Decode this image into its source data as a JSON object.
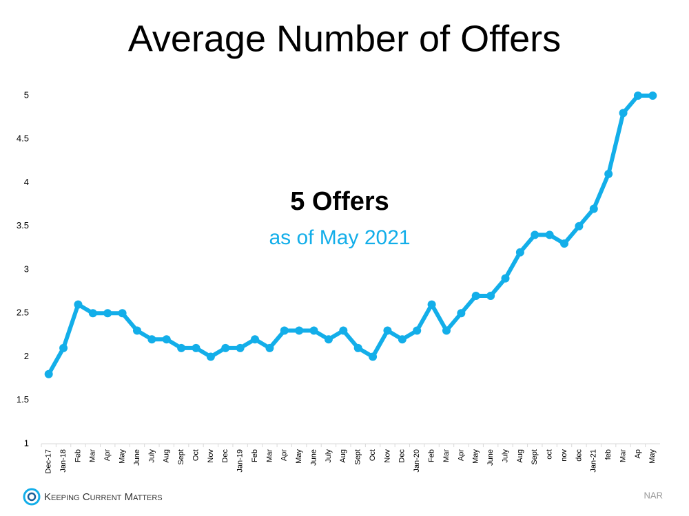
{
  "chart_data": {
    "type": "line",
    "title": "Average Number of Offers",
    "annotation": "5 Offers",
    "annotation_subtitle": "as of May 2021",
    "logo": "Keeping Current Matters",
    "source": "NAR",
    "categories": [
      "Dec-17",
      "Jan-18",
      "Feb",
      "Mar",
      "Apr",
      "May",
      "June",
      "July",
      "Aug",
      "Sept",
      "Oct",
      "Nov",
      "Dec",
      "Jan-19",
      "Feb",
      "Mar",
      "Apr",
      "May",
      "June",
      "July",
      "Aug",
      "Sept",
      "Oct",
      "Nov",
      "Dec",
      "Jan-20",
      "Feb",
      "Mar",
      "Apr",
      "May",
      "June",
      "July",
      "Aug",
      "Sept",
      "oct",
      "nov",
      "dec",
      "Jan-21",
      "feb",
      "Mar",
      "Ap",
      "May"
    ],
    "values": [
      1.8,
      2.1,
      2.6,
      2.5,
      2.5,
      2.5,
      2.3,
      2.2,
      2.2,
      2.1,
      2.1,
      2.0,
      2.1,
      2.1,
      2.2,
      2.1,
      2.3,
      2.3,
      2.3,
      2.2,
      2.3,
      2.1,
      2.0,
      2.3,
      2.2,
      2.3,
      2.6,
      2.3,
      2.5,
      2.7,
      2.7,
      2.9,
      3.2,
      3.4,
      3.4,
      3.3,
      3.5,
      3.7,
      4.1,
      4.8,
      5.0,
      5.0
    ],
    "color": "#13aee9",
    "ylim": [
      1,
      5
    ],
    "yticks": [
      1,
      1.5,
      2,
      2.5,
      3,
      3.5,
      4,
      4.5,
      5
    ],
    "grid": false
  }
}
